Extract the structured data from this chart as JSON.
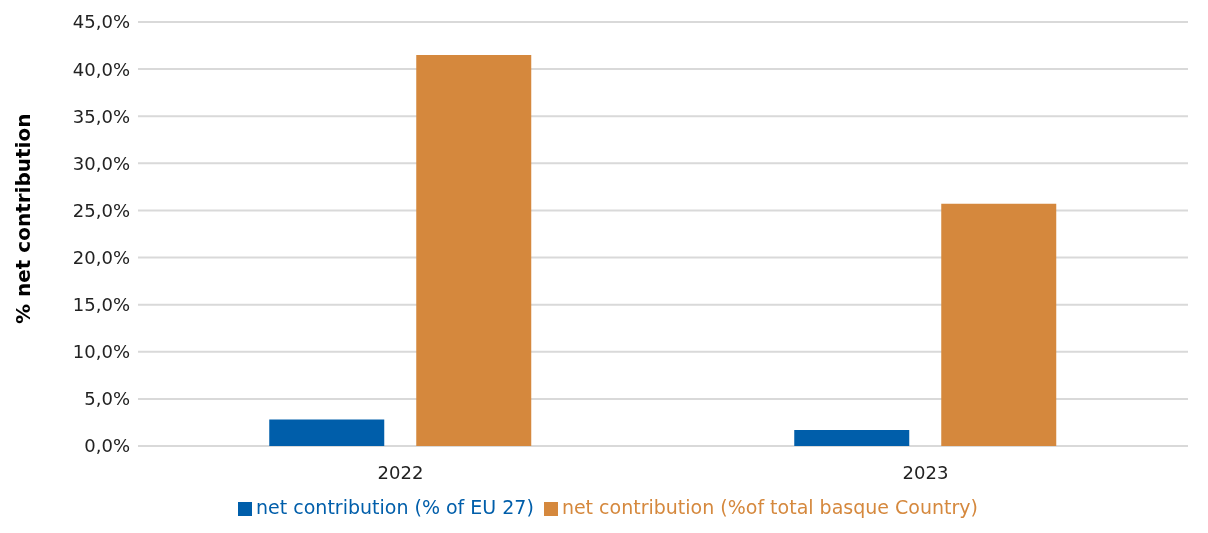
{
  "chart_data": {
    "type": "bar",
    "ylabel": "% net contribution",
    "categories": [
      "2022",
      "2023"
    ],
    "series": [
      {
        "name": "net contribution (% of EU 27)",
        "color": "#005eaa",
        "values": [
          2.8,
          1.7
        ]
      },
      {
        "name": "net contribution (%of total basque Country)",
        "color": "#d5883d",
        "values": [
          41.5,
          25.7
        ]
      }
    ],
    "ylim": [
      0,
      45
    ],
    "yticks": [
      {
        "value": 0,
        "label": "0,0%"
      },
      {
        "value": 5,
        "label": "5,0%"
      },
      {
        "value": 10,
        "label": "10,0%"
      },
      {
        "value": 15,
        "label": "15,0%"
      },
      {
        "value": 20,
        "label": "20,0%"
      },
      {
        "value": 25,
        "label": "25,0%"
      },
      {
        "value": 30,
        "label": "30,0%"
      },
      {
        "value": 35,
        "label": "35,0%"
      },
      {
        "value": 40,
        "label": "40,0%"
      },
      {
        "value": 45,
        "label": "45,0%"
      }
    ],
    "grid": "y",
    "legend": "bottom"
  }
}
